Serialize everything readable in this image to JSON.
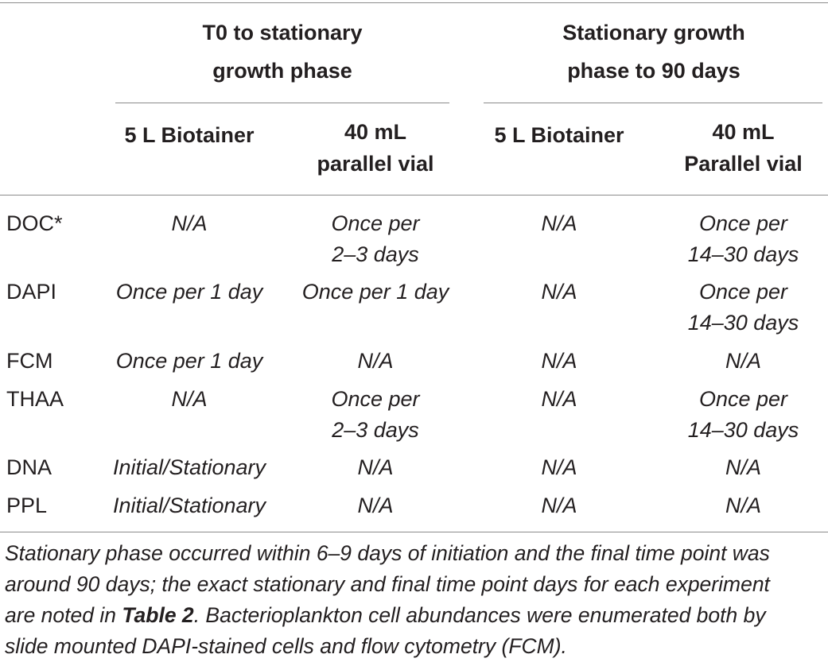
{
  "group_headers": {
    "left": [
      "T0 to stationary",
      "growth phase"
    ],
    "right": [
      "Stationary growth",
      "phase to 90 days"
    ]
  },
  "sub_headers": [
    [
      "5 L Biotainer"
    ],
    [
      "40 mL",
      "parallel vial"
    ],
    [
      "5 L Biotainer"
    ],
    [
      "40 mL",
      "Parallel vial"
    ]
  ],
  "rows": [
    {
      "label": "DOC*",
      "cells": [
        [
          "N/A"
        ],
        [
          "Once per",
          "2–3 days"
        ],
        [
          "N/A"
        ],
        [
          "Once per",
          "14–30 days"
        ]
      ]
    },
    {
      "label": "DAPI",
      "cells": [
        [
          "Once per 1 day"
        ],
        [
          "Once per 1 day"
        ],
        [
          "N/A"
        ],
        [
          "Once per",
          "14–30 days"
        ]
      ]
    },
    {
      "label": "FCM",
      "cells": [
        [
          "Once per 1 day"
        ],
        [
          "N/A"
        ],
        [
          "N/A"
        ],
        [
          "N/A"
        ]
      ]
    },
    {
      "label": "THAA",
      "cells": [
        [
          "N/A"
        ],
        [
          "Once per",
          "2–3 days"
        ],
        [
          "N/A"
        ],
        [
          "Once per",
          "14–30 days"
        ]
      ]
    },
    {
      "label": "DNA",
      "cells": [
        [
          "Initial/Stationary"
        ],
        [
          "N/A"
        ],
        [
          "N/A"
        ],
        [
          "N/A"
        ]
      ]
    },
    {
      "label": "PPL",
      "cells": [
        [
          "Initial/Stationary"
        ],
        [
          "N/A"
        ],
        [
          "N/A"
        ],
        [
          "N/A"
        ]
      ]
    }
  ],
  "footnote": {
    "lines": [
      "Stationary phase occurred within 6–9 days of initiation and the final time point was",
      "around 90 days; the exact stationary and final time point days for each experiment",
      [
        "are noted in ",
        "Table 2",
        ". Bacterioplankton cell abundances were enumerated both by"
      ],
      "slide mounted DAPI-stained cells and flow cytometry (FCM)."
    ]
  }
}
